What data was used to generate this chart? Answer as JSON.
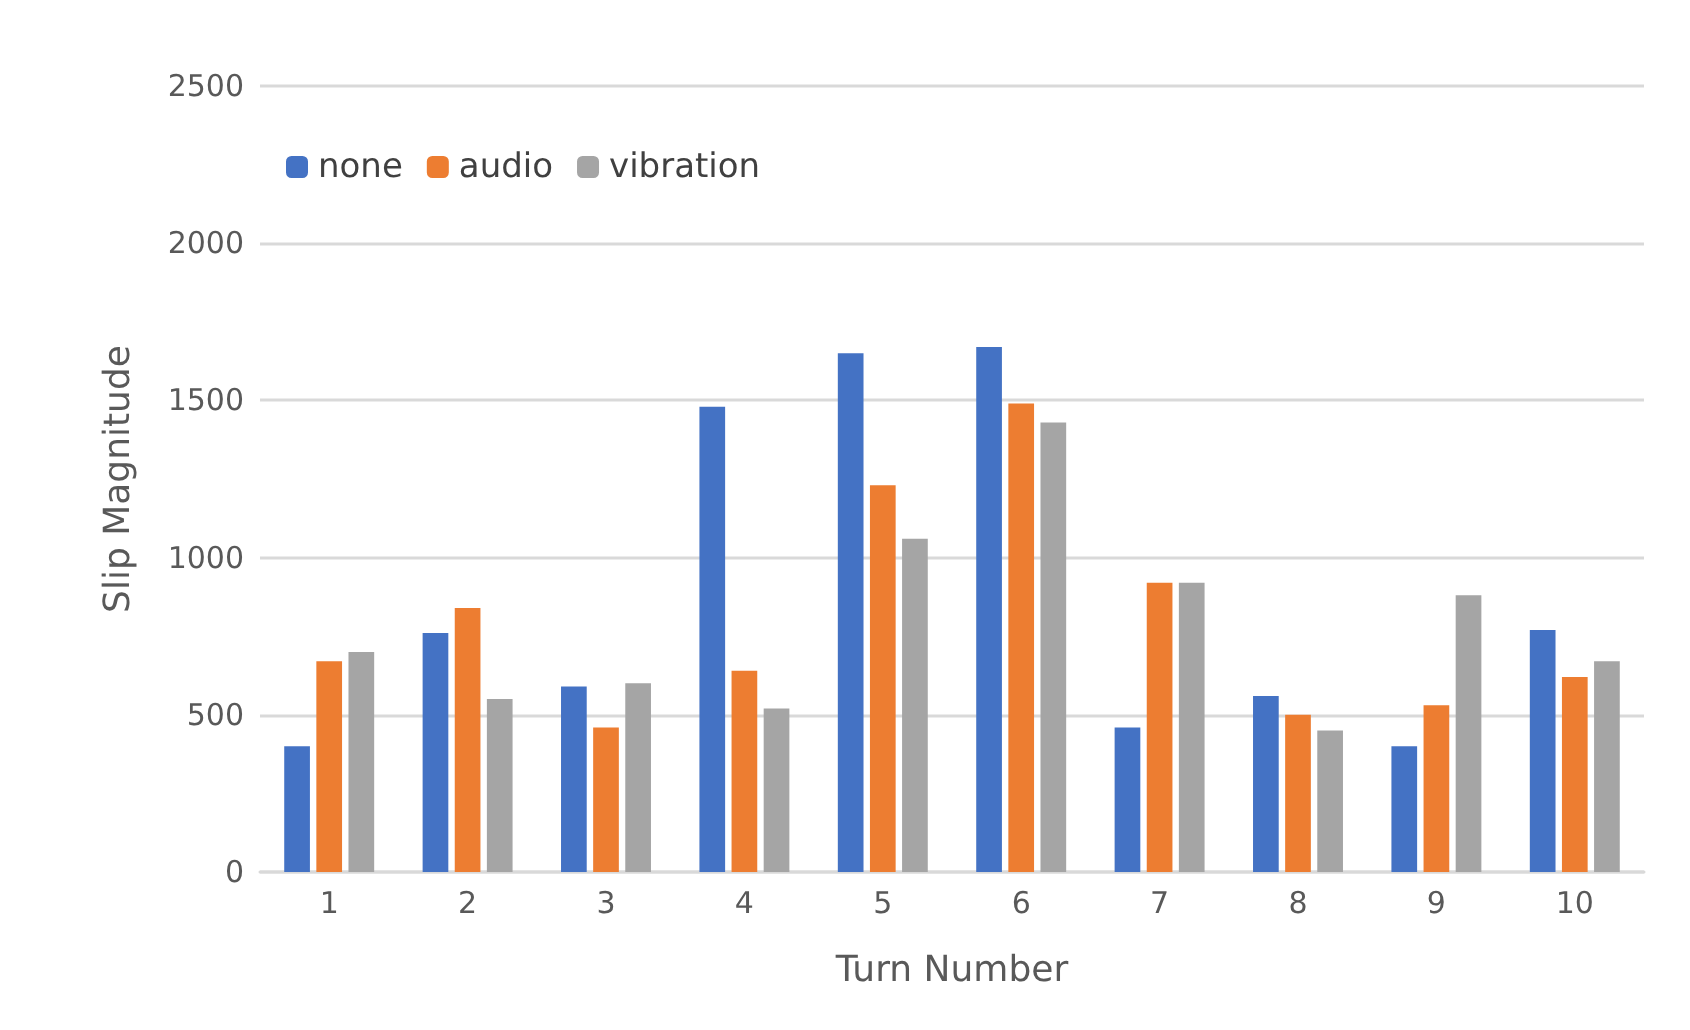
{
  "chart_data": {
    "type": "bar",
    "xlabel": "Turn Number",
    "ylabel": "Slip Magnitude",
    "categories": [
      "1",
      "2",
      "3",
      "4",
      "5",
      "6",
      "7",
      "8",
      "9",
      "10"
    ],
    "series": [
      {
        "name": "none",
        "color": "#4472c4",
        "values": [
          400,
          760,
          590,
          1480,
          1650,
          1670,
          460,
          560,
          400,
          770
        ]
      },
      {
        "name": "audio",
        "color": "#ed7d31",
        "values": [
          670,
          840,
          460,
          640,
          1230,
          1490,
          920,
          500,
          530,
          620
        ]
      },
      {
        "name": "vibration",
        "color": "#a5a5a5",
        "values": [
          700,
          550,
          600,
          520,
          1060,
          1430,
          920,
          450,
          880,
          670
        ]
      }
    ],
    "ylim": [
      0,
      2500
    ],
    "yticks": [
      0,
      500,
      1000,
      1500,
      2000,
      2500
    ],
    "grid": "y",
    "legend": "top left"
  }
}
